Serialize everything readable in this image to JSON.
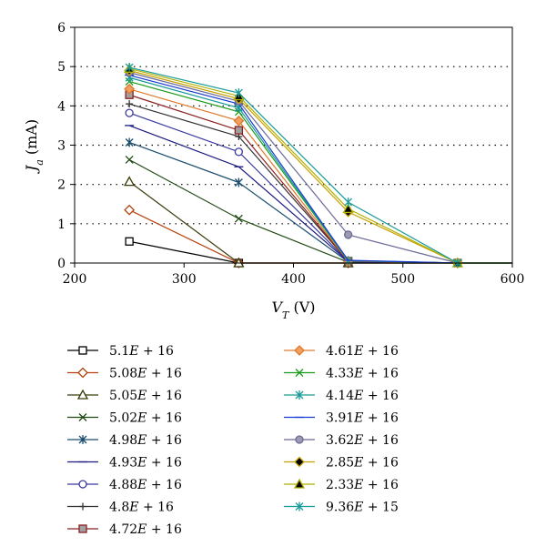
{
  "chart_data": {
    "type": "line",
    "title": "",
    "xlabel": "V_T (V)",
    "ylabel": "J_a (mA)",
    "xlim": [
      200,
      600
    ],
    "ylim": [
      0,
      6
    ],
    "xticks": [
      "200",
      "300",
      "400",
      "500",
      "600"
    ],
    "yticks": [
      "0",
      "1",
      "2",
      "3",
      "4",
      "5",
      "6"
    ],
    "grid": "horizontal dotted",
    "legend_placement": "bottom, two columns",
    "x": [
      250,
      350,
      450,
      550,
      600
    ],
    "series": [
      {
        "name": "5.1E + 16",
        "color": "#000000",
        "marker": "square-open",
        "values": [
          0.55,
          0.0,
          0.0,
          0.0,
          0.0
        ]
      },
      {
        "name": "5.08E + 16",
        "color": "#b4410f",
        "marker": "diamond-open",
        "values": [
          1.35,
          0.0,
          0.0,
          0.0,
          0.0
        ]
      },
      {
        "name": "5.05E + 16",
        "color": "#3a3a0a",
        "marker": "triangle-open",
        "values": [
          2.07,
          0.0,
          0.0,
          0.0,
          0.0
        ]
      },
      {
        "name": "5.02E + 16",
        "color": "#1f4a12",
        "marker": "x",
        "values": [
          2.63,
          1.13,
          0.02,
          0.0,
          0.0
        ]
      },
      {
        "name": "4.98E + 16",
        "color": "#1a4c6e",
        "marker": "asterisk",
        "values": [
          3.07,
          2.05,
          0.03,
          0.0,
          0.0
        ]
      },
      {
        "name": "4.93E + 16",
        "color": "#1a1a80",
        "marker": "dash",
        "values": [
          3.5,
          2.45,
          0.04,
          0.0,
          0.0
        ]
      },
      {
        "name": "4.88E + 16",
        "color": "#3a3aa0",
        "marker": "circle-open",
        "values": [
          3.82,
          2.83,
          0.04,
          0.0,
          0.0
        ]
      },
      {
        "name": "4.8E + 16",
        "color": "#333333",
        "marker": "plus",
        "values": [
          4.05,
          3.22,
          0.05,
          0.0,
          0.0
        ]
      },
      {
        "name": "4.72E + 16",
        "color": "#8b2020",
        "marker": "square-filled",
        "fill": "#a0a0a0",
        "values": [
          4.28,
          3.38,
          0.05,
          0.0,
          0.0
        ]
      },
      {
        "name": "4.61E + 16",
        "color": "#e07a2c",
        "marker": "diamond-filled",
        "fill": "#f0a060",
        "values": [
          4.43,
          3.62,
          0.05,
          0.0,
          0.0
        ]
      },
      {
        "name": "4.33E + 16",
        "color": "#1a9a1a",
        "marker": "x",
        "values": [
          4.62,
          3.85,
          0.06,
          0.0,
          0.0
        ]
      },
      {
        "name": "4.14E + 16",
        "color": "#1a9a9a",
        "marker": "asterisk",
        "values": [
          4.72,
          3.95,
          0.06,
          0.0,
          0.0
        ]
      },
      {
        "name": "3.91E + 16",
        "color": "#1a3ad0",
        "marker": "dash",
        "values": [
          4.78,
          4.05,
          0.07,
          0.0,
          0.0
        ]
      },
      {
        "name": "3.62E + 16",
        "color": "#6a6a9a",
        "marker": "circle-filled",
        "fill": "#9a9ab0",
        "values": [
          4.85,
          4.12,
          0.72,
          0.0,
          0.0
        ]
      },
      {
        "name": "2.85E + 16",
        "color": "#c8a000",
        "marker": "diamond-filled",
        "fill": "#000000",
        "values": [
          4.9,
          4.18,
          1.3,
          0.0,
          0.0
        ]
      },
      {
        "name": "2.33E + 16",
        "color": "#b0b000",
        "marker": "triangle-filled",
        "fill": "#000000",
        "values": [
          4.95,
          4.25,
          1.38,
          0.0,
          0.0
        ]
      },
      {
        "name": "9.36E + 15",
        "color": "#1a9a9a",
        "marker": "asterisk",
        "values": [
          4.98,
          4.33,
          1.55,
          0.0,
          0.0
        ]
      }
    ]
  }
}
